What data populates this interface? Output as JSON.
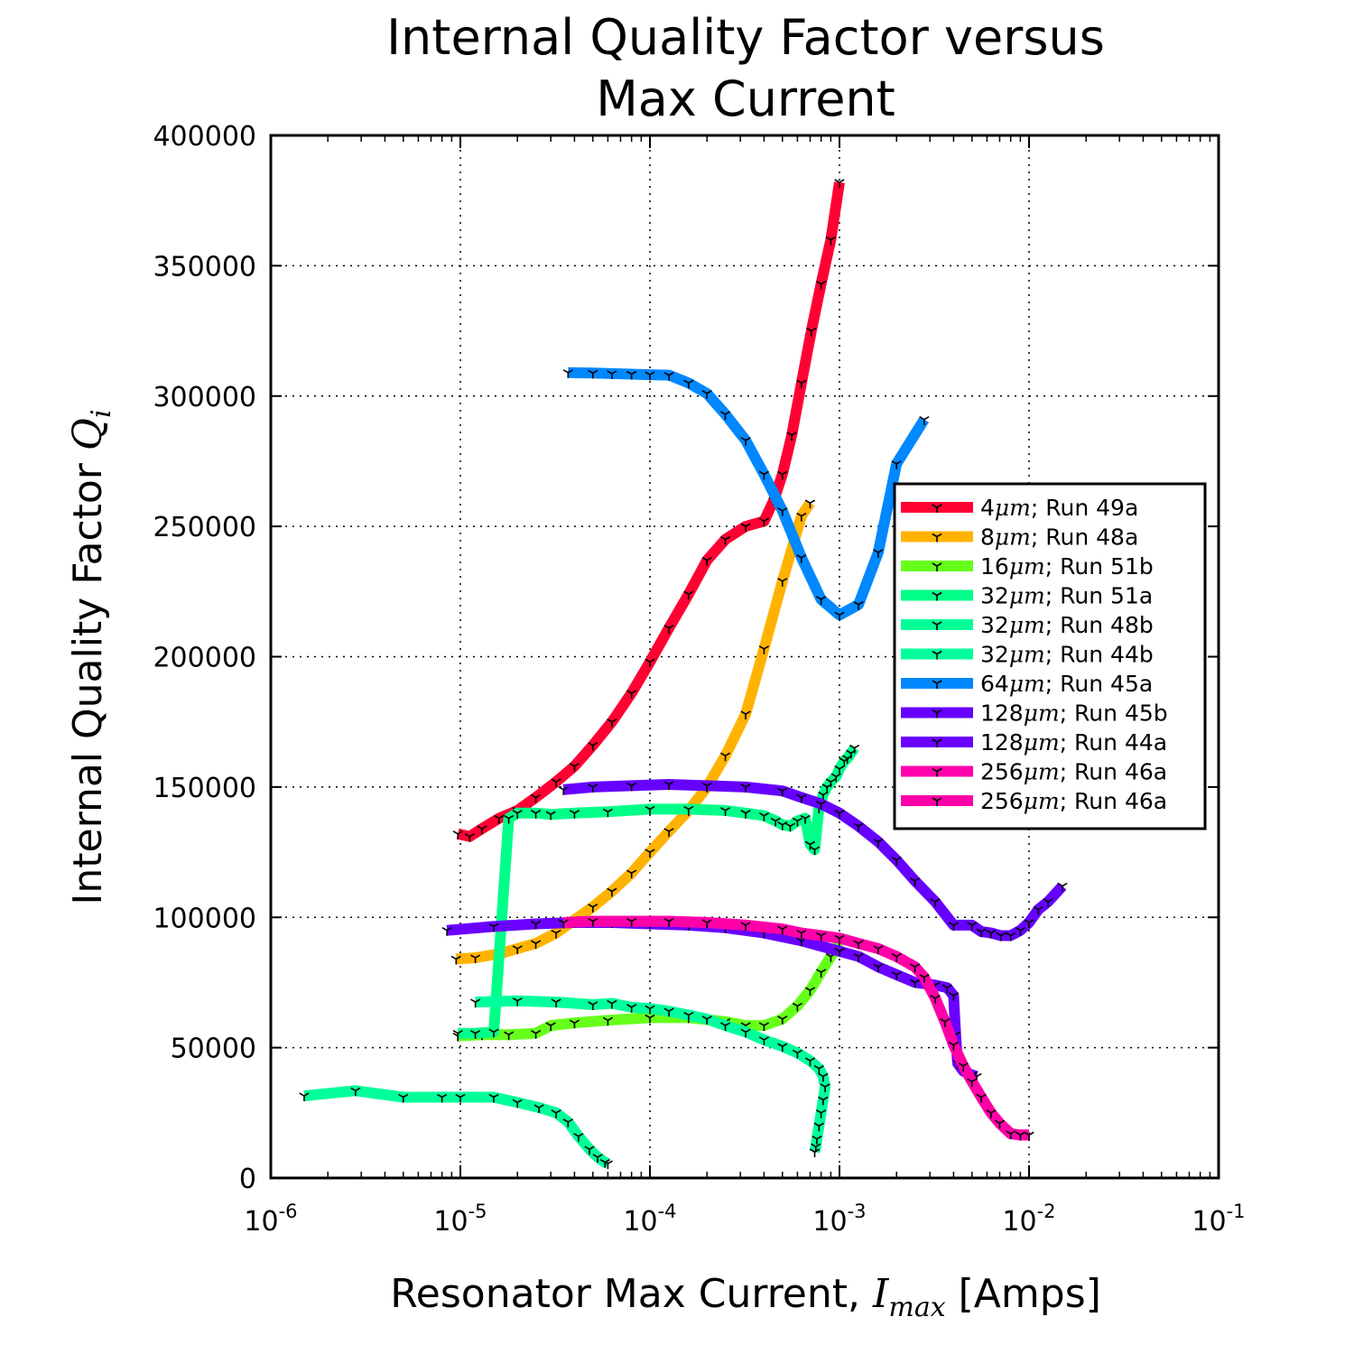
{
  "chart_data": {
    "type": "line",
    "title_lines": [
      "Internal Quality Factor versus",
      "Max Current"
    ],
    "xlabel": {
      "text": "Resonator Max Current, ",
      "math": "I",
      "math_sub": "max",
      "suffix": " [Amps]"
    },
    "ylabel": {
      "text": "Internal Quality Factor ",
      "math": "Q",
      "math_sub": "i"
    },
    "xscale": "log",
    "xlim": [
      1e-06,
      0.1
    ],
    "ylim": [
      0,
      400000
    ],
    "grid": true,
    "legend_position": "center-right",
    "x_tick_labels": [
      {
        "base": "10",
        "exp": "-6"
      },
      {
        "base": "10",
        "exp": "-5"
      },
      {
        "base": "10",
        "exp": "-4"
      },
      {
        "base": "10",
        "exp": "-3"
      },
      {
        "base": "10",
        "exp": "-2"
      },
      {
        "base": "10",
        "exp": "-1"
      }
    ],
    "y_tick_labels": [
      "0",
      "50000",
      "100000",
      "150000",
      "200000",
      "250000",
      "300000",
      "350000",
      "400000"
    ],
    "series": [
      {
        "name": "4μm; Run 49a",
        "prefix": "4",
        "suffix": "; Run 49a",
        "color": "#ff0033",
        "x": [
          9.7e-06,
          1.12e-05,
          1.3e-05,
          1.6e-05,
          2e-05,
          2.5e-05,
          3.2e-05,
          4e-05,
          5e-05,
          6.3e-05,
          8e-05,
          0.0001,
          0.000126,
          0.00016,
          0.0002,
          0.00025,
          0.00032,
          0.0004,
          0.00045,
          0.0005,
          0.00056,
          0.00063,
          0.00071,
          0.0008,
          0.0009,
          0.001
        ],
        "y": [
          132000,
          131000,
          134000,
          138000,
          141000,
          146000,
          152000,
          158000,
          166000,
          175000,
          186000,
          198000,
          211000,
          224000,
          237000,
          245000,
          250000,
          252000,
          260000,
          270000,
          285000,
          305000,
          325000,
          343000,
          360000,
          382000
        ]
      },
      {
        "name": "8μm; Run 48a",
        "prefix": "8",
        "suffix": "; Run 48a",
        "color": "#ffb300",
        "x": [
          9.5e-06,
          1.2e-05,
          1.6e-05,
          2e-05,
          2.5e-05,
          3.2e-05,
          4e-05,
          5e-05,
          6.3e-05,
          8e-05,
          0.0001,
          0.000126,
          0.00016,
          0.0002,
          0.00025,
          0.00032,
          0.0004,
          0.0005,
          0.00063,
          0.0007
        ],
        "y": [
          84000,
          84500,
          86000,
          88000,
          90000,
          94000,
          99000,
          104000,
          110000,
          117000,
          125000,
          133000,
          141000,
          150000,
          162000,
          178000,
          203000,
          229000,
          254000,
          259000
        ]
      },
      {
        "name": "16μm; Run 51b",
        "prefix": "16",
        "suffix": "; Run 51b",
        "color": "#66ff1a",
        "x": [
          9.7e-06,
          1.3e-05,
          1.8e-05,
          2.5e-05,
          3e-05,
          4e-05,
          6e-05,
          0.0001,
          0.00016,
          0.00025,
          0.00032,
          0.0004,
          0.0005,
          0.0006,
          0.0007,
          0.0008,
          0.0009,
          0.001
        ],
        "y": [
          54500,
          55000,
          55000,
          55500,
          58500,
          59500,
          60500,
          61500,
          61500,
          60000,
          58500,
          58500,
          61000,
          66000,
          72000,
          79000,
          85000,
          90000
        ]
      },
      {
        "name": "32μm; Run 51a",
        "prefix": "32",
        "suffix": "; Run 51a",
        "color": "#00ff88",
        "x": [
          9.7e-06,
          1.2e-05,
          1.5e-05,
          1.8e-05,
          2e-05,
          2.5e-05,
          3e-05,
          4e-05,
          6e-05,
          0.0001,
          0.00016,
          0.00025,
          0.00032,
          0.0004,
          0.00046,
          0.0005,
          0.00055,
          0.0006,
          0.00066,
          0.0007,
          0.00074,
          0.00078,
          0.00082,
          0.00086,
          0.0009,
          0.00096,
          0.001,
          0.00106,
          0.0011,
          0.00115,
          0.0012
        ],
        "y": [
          55500,
          55500,
          56000,
          138000,
          140000,
          140000,
          139500,
          140000,
          140500,
          141500,
          141500,
          141000,
          140000,
          139000,
          137000,
          135500,
          135000,
          137000,
          138000,
          128000,
          126000,
          142000,
          147000,
          150000,
          152000,
          154000,
          157000,
          160000,
          161000,
          163000,
          165000
        ]
      },
      {
        "name": "32μm; Run 48b",
        "prefix": "32",
        "suffix": "; Run 48b",
        "color": "#00ff99",
        "x": [
          1.5e-06,
          2.8e-06,
          5e-06,
          8e-06,
          1e-05,
          1.5e-05,
          2e-05,
          2.6e-05,
          3.2e-05,
          3.7e-05,
          4.2e-05,
          4.8e-05,
          5.3e-05,
          5.8e-05,
          6e-05
        ],
        "y": [
          31500,
          33500,
          31000,
          31000,
          31000,
          31000,
          29000,
          27000,
          25000,
          21500,
          16000,
          11000,
          8000,
          6000,
          5500
        ]
      },
      {
        "name": "32μm; Run 44b",
        "prefix": "32",
        "suffix": "; Run 44b",
        "color": "#00ff9c",
        "x": [
          1.2e-05,
          2e-05,
          3.2e-05,
          5e-05,
          6.3e-05,
          8e-05,
          0.0001,
          0.000126,
          0.00016,
          0.0002,
          0.00025,
          0.00032,
          0.0004,
          0.0005,
          0.0006,
          0.0007,
          0.00078,
          0.00082,
          0.00084,
          0.00082,
          0.0008,
          0.00078,
          0.00076,
          0.00075,
          0.00074
        ],
        "y": [
          67500,
          68000,
          67500,
          66500,
          67000,
          65500,
          65000,
          64000,
          62500,
          61000,
          58500,
          56000,
          53000,
          50500,
          48000,
          45000,
          42000,
          39000,
          35000,
          30000,
          25000,
          20000,
          15000,
          12000,
          10000
        ]
      },
      {
        "name": "64μm; Run 45a",
        "prefix": "64",
        "suffix": "; Run 45a",
        "color": "#0088ff",
        "x": [
          3.7e-05,
          5e-05,
          6.3e-05,
          8e-05,
          0.0001,
          0.000126,
          0.00016,
          0.0002,
          0.00025,
          0.00032,
          0.0004,
          0.0005,
          0.00063,
          0.0008,
          0.001,
          0.00126,
          0.0016,
          0.002,
          0.0028
        ],
        "y": [
          309000,
          308800,
          308600,
          308400,
          308200,
          308000,
          305000,
          301000,
          293000,
          283000,
          270000,
          256000,
          238000,
          222000,
          216000,
          220000,
          240000,
          274000,
          291000
        ]
      },
      {
        "name": "128μm; Run 45b",
        "prefix": "128",
        "suffix": "; Run 45b",
        "color": "#6600ff",
        "x": [
          3.5e-05,
          5e-05,
          8e-05,
          0.000126,
          0.0002,
          0.00032,
          0.0005,
          0.00063,
          0.0008,
          0.001,
          0.00126,
          0.0016,
          0.002,
          0.0025,
          0.0032,
          0.004,
          0.005,
          0.0056,
          0.0063,
          0.0071,
          0.008,
          0.009,
          0.01,
          0.0112,
          0.0126,
          0.015
        ],
        "y": [
          149000,
          150000,
          150500,
          151000,
          150500,
          150000,
          148500,
          146000,
          143500,
          140000,
          135000,
          129000,
          122000,
          114000,
          106000,
          97000,
          97000,
          94500,
          94000,
          93000,
          93000,
          95000,
          98000,
          103000,
          106000,
          112000
        ]
      },
      {
        "name": "128μm; Run 44a",
        "prefix": "128",
        "suffix": "; Run 44a",
        "color": "#6a00ff",
        "x": [
          8.5e-06,
          1.5e-05,
          2.5e-05,
          4e-05,
          6.3e-05,
          0.0001,
          0.00016,
          0.00025,
          0.0004,
          0.00063,
          0.001,
          0.00126,
          0.0016,
          0.002,
          0.0025,
          0.0032,
          0.0037,
          0.004,
          0.0041,
          0.0042,
          0.0045,
          0.005,
          0.0053
        ],
        "y": [
          95000,
          96500,
          97500,
          98000,
          98000,
          97500,
          97000,
          96000,
          94000,
          91000,
          87000,
          85000,
          81000,
          78000,
          75000,
          74000,
          73000,
          70000,
          55000,
          44000,
          41000,
          39500,
          39000
        ]
      },
      {
        "name": "256μm; Run 46a",
        "prefix": "256",
        "suffix": "; Run 46a",
        "color": "#ff00aa",
        "x": [
          3.5e-05,
          5e-05,
          8e-05,
          0.000126,
          0.0002,
          0.00032,
          0.0005,
          0.00063,
          0.0008,
          0.001,
          0.00126,
          0.0016,
          0.002,
          0.0025,
          0.0028,
          0.0032,
          0.0036,
          0.004,
          0.0045,
          0.005,
          0.0056,
          0.0063,
          0.007,
          0.008,
          0.009,
          0.01
        ],
        "y": [
          98000,
          98500,
          98500,
          98500,
          98000,
          97000,
          95500,
          94000,
          93000,
          92000,
          90000,
          88000,
          85000,
          81000,
          77000,
          69000,
          60000,
          51000,
          43000,
          37000,
          31000,
          25000,
          21000,
          17000,
          16500,
          16500
        ]
      },
      {
        "name": "256μm; Run 46a",
        "prefix": "256",
        "suffix": "; Run 46a",
        "color": "#ff00a8",
        "x": [
          3.5e-05,
          5e-05,
          8e-05,
          0.000126,
          0.0002,
          0.00032,
          0.0005,
          0.00063,
          0.0008,
          0.001,
          0.00126,
          0.0016,
          0.002,
          0.0025,
          0.0028,
          0.0032,
          0.0036,
          0.004,
          0.0045,
          0.005,
          0.0056,
          0.0063,
          0.007,
          0.008,
          0.009,
          0.01
        ],
        "y": [
          98000,
          98500,
          98500,
          98500,
          98000,
          97000,
          95500,
          94000,
          93000,
          92000,
          90000,
          88000,
          85000,
          81000,
          77000,
          69000,
          60000,
          51000,
          43000,
          37000,
          31000,
          25000,
          21000,
          17000,
          16500,
          16500
        ]
      }
    ],
    "legend_math": "μm"
  }
}
